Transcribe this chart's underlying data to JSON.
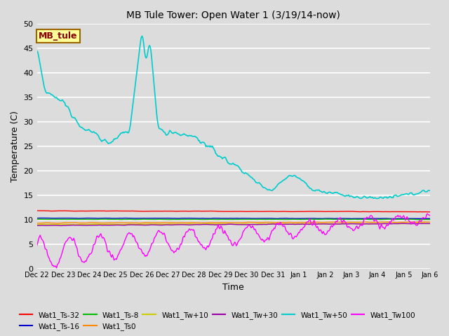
{
  "title": "MB Tule Tower: Open Water 1 (3/19/14-now)",
  "xlabel": "Time",
  "ylabel": "Temperature (C)",
  "ylim": [
    0,
    50
  ],
  "background_color": "#dcdcdc",
  "grid_color": "#ffffff",
  "legend_label": "MB_tule",
  "tick_labels": [
    "Dec 22",
    "Dec 23",
    "Dec 24",
    "Dec 25",
    "Dec 26",
    "Dec 27",
    "Dec 28",
    "Dec 29",
    "Dec 30",
    "Dec 31",
    "Jan 1",
    "Jan 2",
    "Jan 3",
    "Jan 4",
    "Jan 5",
    "Jan 6"
  ],
  "series": {
    "Wat1_Ts-32": {
      "color": "#ff0000",
      "lw": 1.0
    },
    "Wat1_Ts-16": {
      "color": "#0000cc",
      "lw": 1.0
    },
    "Wat1_Ts-8": {
      "color": "#00bb00",
      "lw": 1.0
    },
    "Wat1_Ts0": {
      "color": "#ff8800",
      "lw": 1.0
    },
    "Wat1_Tw+10": {
      "color": "#cccc00",
      "lw": 1.0
    },
    "Wat1_Tw+30": {
      "color": "#9900aa",
      "lw": 1.0
    },
    "Wat1_Tw+50": {
      "color": "#00cccc",
      "lw": 1.2
    },
    "Wat1_Tw100": {
      "color": "#ff00ff",
      "lw": 1.0
    }
  }
}
